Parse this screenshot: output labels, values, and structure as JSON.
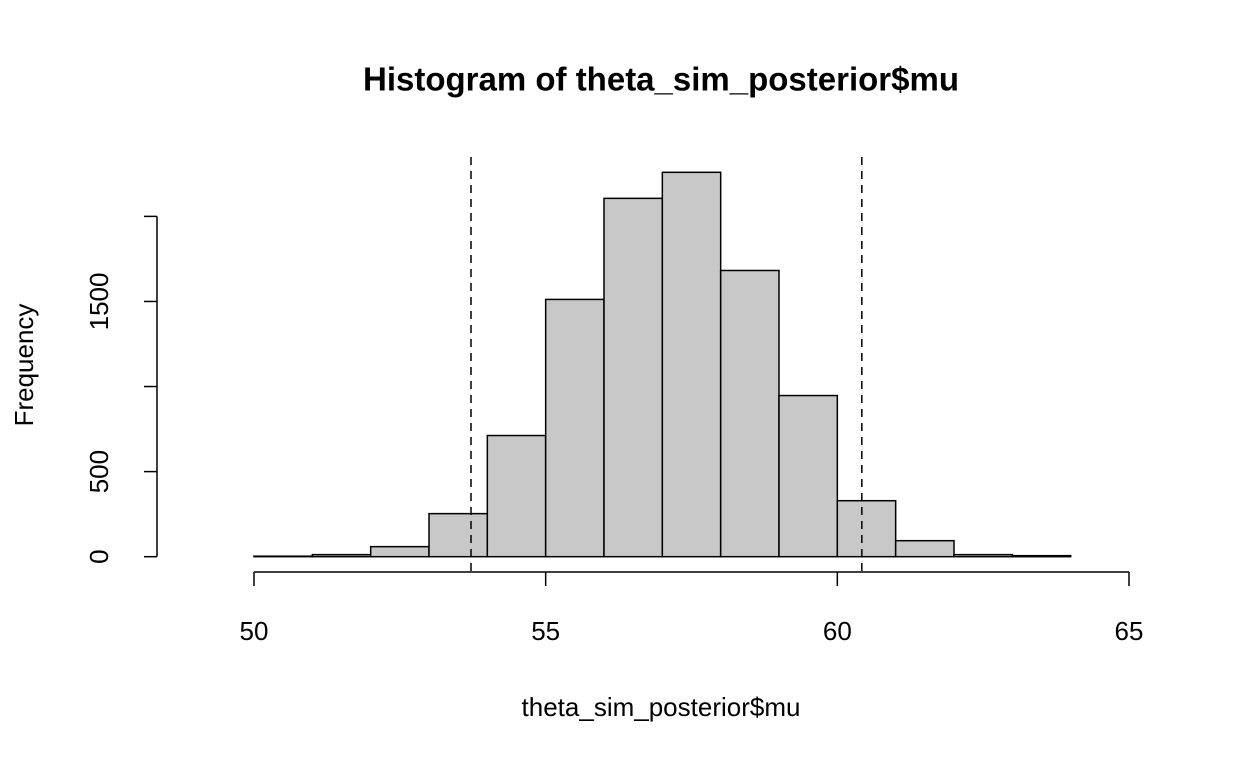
{
  "chart_data": {
    "type": "histogram",
    "title": "Histogram of theta_sim_posterior$mu",
    "x_label": "theta_sim_posterior$mu",
    "y_label": "Frequency",
    "bins": [
      50,
      51,
      52,
      53,
      54,
      55,
      56,
      57,
      58,
      59,
      60,
      61,
      62,
      63,
      64
    ],
    "values": [
      3,
      12,
      59,
      253,
      712,
      1512,
      2106,
      2259,
      1682,
      947,
      329,
      94,
      12,
      6
    ],
    "color": "#c8c8c8",
    "edge_color": "#000000",
    "xlim": [
      50,
      65
    ],
    "xticks": [
      50,
      55,
      60,
      65
    ],
    "ylim": [
      -90,
      2349
    ],
    "yticks": [
      0,
      500,
      {
        "value": 1000,
        "label": null
      },
      1500,
      {
        "value": 2000,
        "label": null
      }
    ],
    "vlines": [
      53.72,
      60.42
    ],
    "vline_style": "dashed"
  }
}
